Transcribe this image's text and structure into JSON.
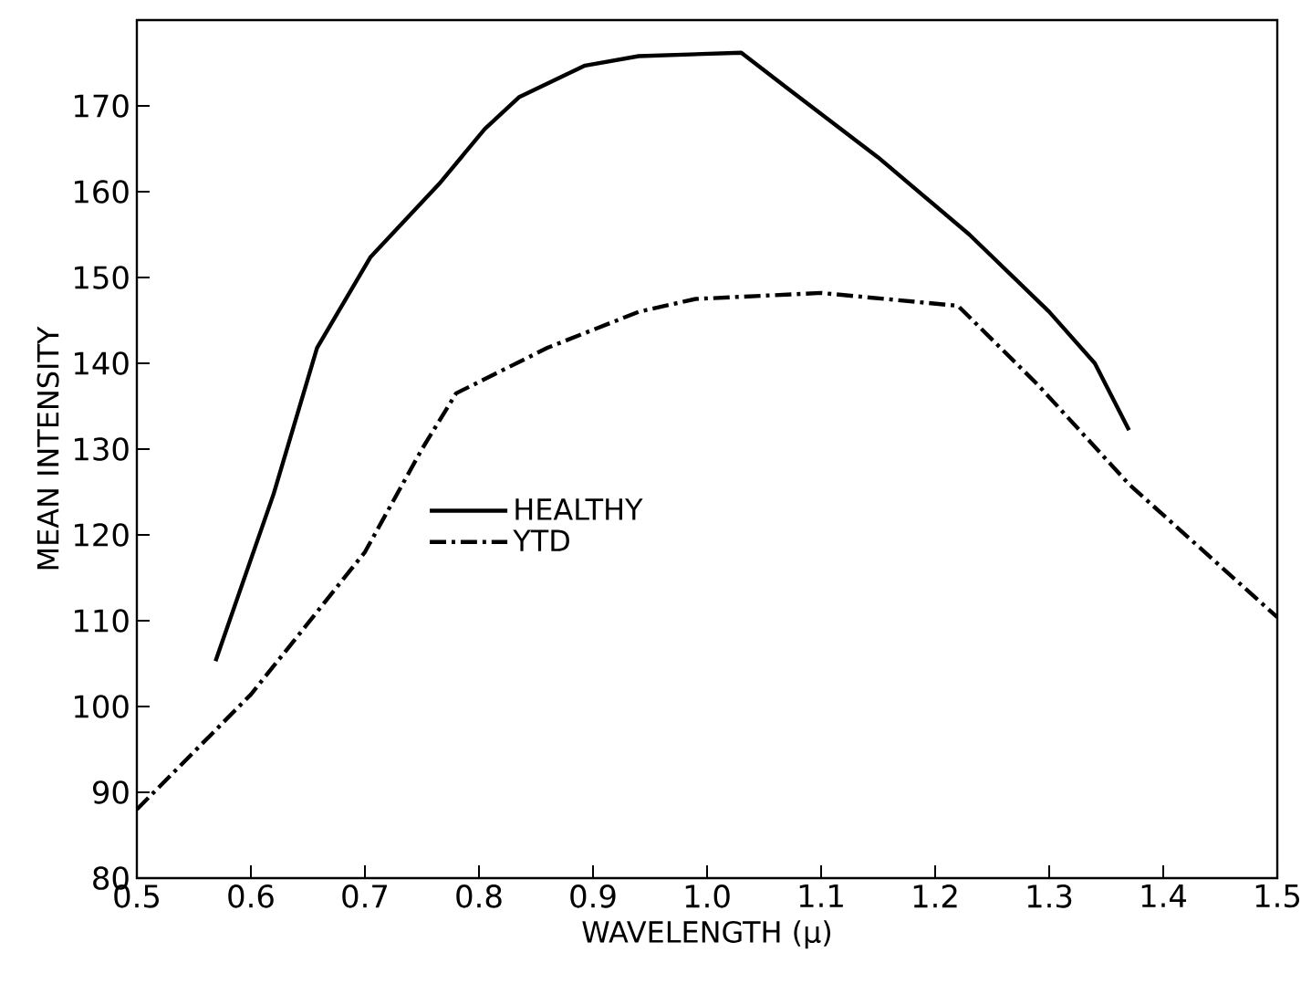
{
  "chart_data": {
    "type": "line",
    "xlabel": "WAVELENGTH (μ)",
    "ylabel": "MEAN INTENSITY",
    "xlim": [
      0.5,
      1.5
    ],
    "ylim": [
      80,
      180
    ],
    "xticks": [
      0.5,
      0.6,
      0.7,
      0.8,
      0.9,
      {
        "value": 1.0,
        "label": "1.0"
      },
      1.1,
      1.2,
      1.3,
      1.4,
      1.5
    ],
    "yticks": [
      80,
      90,
      100,
      110,
      120,
      130,
      140,
      150,
      160,
      170,
      {
        "value": 180,
        "label": null
      }
    ],
    "grid": false,
    "legend": "center left",
    "marker": "none",
    "series": [
      {
        "name": "HEALTHY",
        "color": "#000000",
        "line_style": "solid",
        "x": [
          0.569,
          0.62,
          0.658,
          0.705,
          0.765,
          0.805,
          0.835,
          0.893,
          0.94,
          1.03,
          1.07,
          1.15,
          1.23,
          1.3,
          1.34,
          1.37
        ],
        "values": [
          105.3,
          124.8,
          141.8,
          152.4,
          160.9,
          167.3,
          171,
          174.7,
          175.8,
          176.2,
          172.1,
          164,
          155,
          146,
          140,
          132.2
        ]
      },
      {
        "name": "YTD",
        "color": "#000000",
        "line_style": "dashdot",
        "x": [
          0.5,
          0.6,
          0.7,
          0.75,
          0.78,
          0.86,
          0.94,
          0.99,
          1.1,
          1.22,
          1.29,
          1.37,
          1.5
        ],
        "values": [
          88,
          101.4,
          118,
          130,
          136.5,
          141.8,
          146,
          147.5,
          148.2,
          146.7,
          137.5,
          125.9,
          110.4
        ]
      }
    ]
  }
}
